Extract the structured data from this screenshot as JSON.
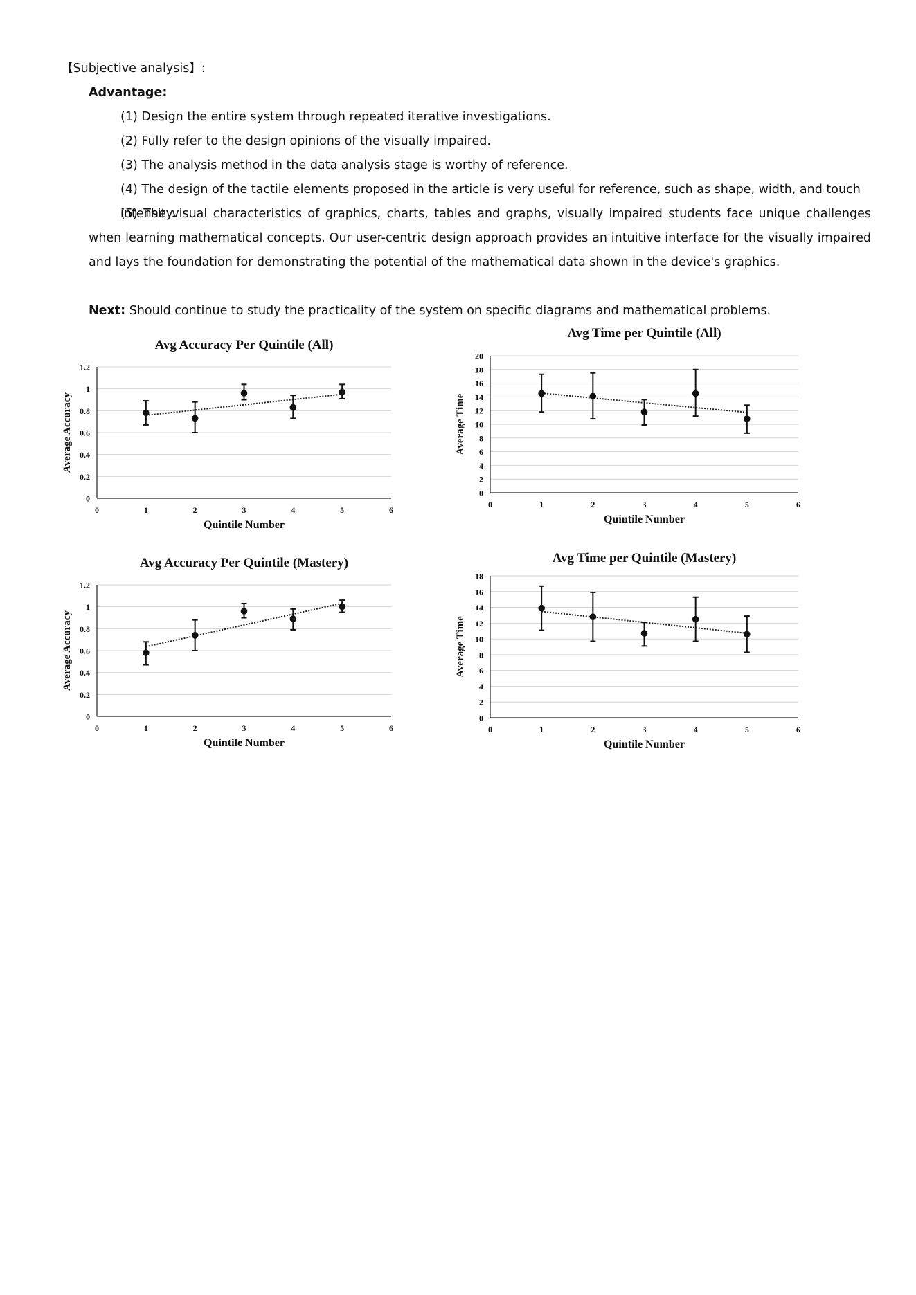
{
  "section_title": "【Subjective analysis】:",
  "advantage_heading": "Advantage:",
  "advantages": [
    "(1) Design the entire system through repeated iterative investigations.",
    "(2) Fully refer to the design opinions of the visually impaired.",
    "(3) The analysis method in the data analysis stage is worthy of reference.",
    "(4) The design of the tactile elements proposed in the article is very useful for reference, such as shape, width, and touch intensity.",
    "(5) The visual characteristics of graphics, charts, tables and graphs, visually impaired students face unique challenges when learning mathematical concepts. Our user-centric design approach provides an intuitive interface for the visually impaired and lays the foundation for demonstrating the potential of the mathematical data shown in the device's graphics."
  ],
  "next": {
    "label": "Next:",
    "text": " Should continue to study the practicality of the system on specific diagrams and mathematical problems."
  },
  "chart_data": [
    {
      "type": "scatter",
      "title": "Avg Accuracy Per Quintile (All)",
      "xlabel": "Quintile Number",
      "ylabel": "Average Accuracy",
      "xlim": [
        0,
        6
      ],
      "ylim": [
        0,
        1.2
      ],
      "xticks": [
        "0",
        "1",
        "2",
        "3",
        "4",
        "5",
        "6"
      ],
      "yticks": [
        "0",
        "0.2",
        "0.4",
        "0.6",
        "0.8",
        "1",
        "1.2"
      ],
      "grid": true,
      "trendline": "dotted linear",
      "x": [
        1,
        2,
        3,
        4,
        5
      ],
      "y": [
        0.78,
        0.73,
        0.96,
        0.83,
        0.97
      ],
      "err_low": [
        0.67,
        0.6,
        0.9,
        0.73,
        0.91
      ],
      "err_high": [
        0.89,
        0.88,
        1.04,
        0.94,
        1.04
      ]
    },
    {
      "type": "scatter",
      "title": "Avg Time per Quintile (All)",
      "xlabel": "Quintile Number",
      "ylabel": "Average Time",
      "xlim": [
        0,
        6
      ],
      "ylim": [
        0,
        20
      ],
      "xticks": [
        "0",
        "1",
        "2",
        "3",
        "4",
        "5",
        "6"
      ],
      "yticks": [
        "0",
        "2",
        "4",
        "6",
        "8",
        "10",
        "12",
        "14",
        "16",
        "18",
        "20"
      ],
      "grid": true,
      "trendline": "dotted linear",
      "x": [
        1,
        2,
        3,
        4,
        5
      ],
      "y": [
        14.5,
        14.1,
        11.8,
        14.5,
        10.8
      ],
      "err_low": [
        11.8,
        10.8,
        9.9,
        11.2,
        8.7
      ],
      "err_high": [
        17.3,
        17.5,
        13.6,
        18.0,
        12.8
      ]
    },
    {
      "type": "scatter",
      "title": "Avg Accuracy Per Quintile (Mastery)",
      "xlabel": "Quintile Number",
      "ylabel": "Average Accuracy",
      "xlim": [
        0,
        6
      ],
      "ylim": [
        0,
        1.2
      ],
      "xticks": [
        "0",
        "1",
        "2",
        "3",
        "4",
        "5",
        "6"
      ],
      "yticks": [
        "0",
        "0.2",
        "0.4",
        "0.6",
        "0.8",
        "1",
        "1.2"
      ],
      "grid": true,
      "trendline": "dotted linear",
      "x": [
        1,
        2,
        3,
        4,
        5
      ],
      "y": [
        0.58,
        0.74,
        0.96,
        0.89,
        1.0
      ],
      "err_low": [
        0.47,
        0.6,
        0.9,
        0.79,
        0.95
      ],
      "err_high": [
        0.68,
        0.88,
        1.03,
        0.98,
        1.06
      ]
    },
    {
      "type": "scatter",
      "title": "Avg Time per Quintile (Mastery)",
      "xlabel": "Quintile Number",
      "ylabel": "Average Time",
      "xlim": [
        0,
        6
      ],
      "ylim": [
        0,
        18
      ],
      "xticks": [
        "0",
        "1",
        "2",
        "3",
        "4",
        "5",
        "6"
      ],
      "yticks": [
        "0",
        "2",
        "4",
        "6",
        "8",
        "10",
        "12",
        "14",
        "16",
        "18"
      ],
      "grid": true,
      "trendline": "dotted linear",
      "x": [
        1,
        2,
        3,
        4,
        5
      ],
      "y": [
        13.9,
        12.8,
        10.7,
        12.5,
        10.6
      ],
      "err_low": [
        11.1,
        9.7,
        9.1,
        9.7,
        8.3
      ],
      "err_high": [
        16.7,
        15.9,
        12.1,
        15.3,
        12.9
      ]
    }
  ]
}
